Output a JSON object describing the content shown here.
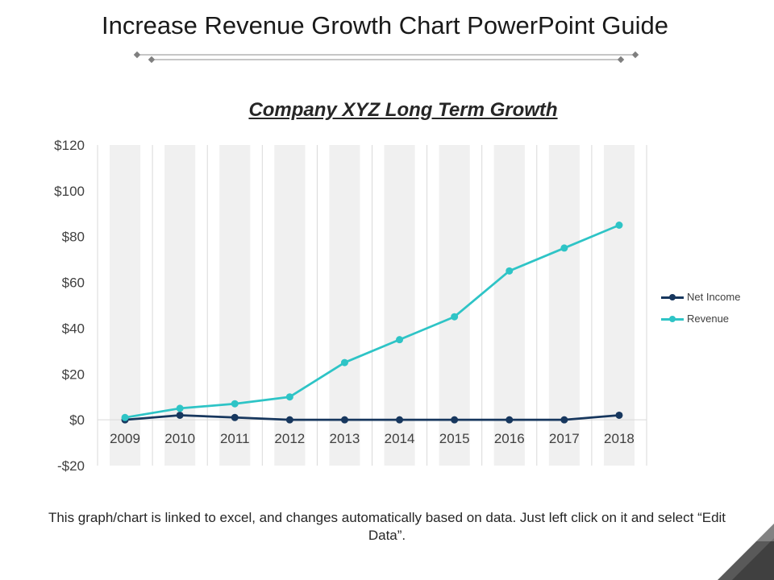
{
  "slide": {
    "title": "Increase Revenue Growth Chart PowerPoint Guide",
    "footnote": "This graph/chart is linked to excel, and changes automatically based on data. Just left click on it and select “Edit Data”."
  },
  "colors": {
    "net_income": "#17375e",
    "revenue": "#2ec4c6",
    "band": "#f0f0f0",
    "decoration": "#595959"
  },
  "chart_data": {
    "type": "line",
    "title": "Company XYZ  Long Term Growth",
    "xlabel": "",
    "ylabel": "",
    "categories": [
      "2009",
      "2010",
      "2011",
      "2012",
      "2013",
      "2014",
      "2015",
      "2016",
      "2017",
      "2018"
    ],
    "series": [
      {
        "name": "Net Income",
        "values": [
          0,
          2,
          1,
          0,
          0,
          0,
          0,
          0,
          0,
          2
        ]
      },
      {
        "name": "Revenue",
        "values": [
          1,
          5,
          7,
          10,
          25,
          35,
          45,
          65,
          75,
          85
        ]
      }
    ],
    "ylim": [
      -20,
      120
    ],
    "yticks": [
      -20,
      0,
      20,
      40,
      60,
      80,
      100,
      120
    ],
    "ytick_labels": [
      "-$20",
      "$0",
      "$20",
      "$40",
      "$60",
      "$80",
      "$100",
      "$120"
    ],
    "legend_position": "right",
    "grid": true
  }
}
